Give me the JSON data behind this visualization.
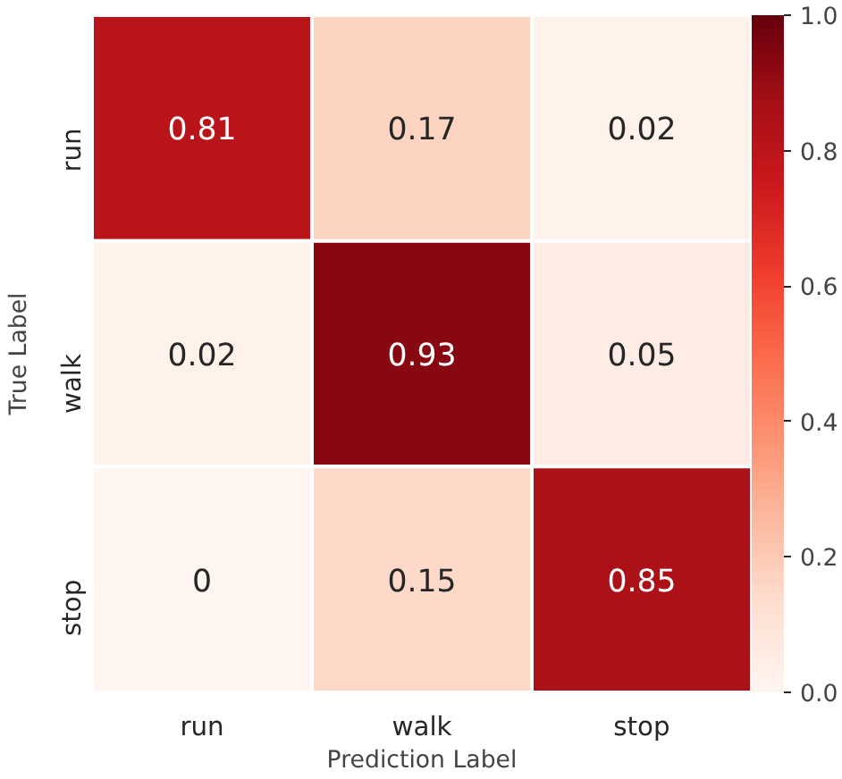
{
  "chart_data": {
    "type": "heatmap",
    "xlabel": "Prediction Label",
    "ylabel": "True Label",
    "categories": [
      "run",
      "walk",
      "stop"
    ],
    "y_categories": [
      "run",
      "walk",
      "stop"
    ],
    "cells": [
      [
        0.81,
        0.17,
        0.02
      ],
      [
        0.02,
        0.93,
        0.05
      ],
      [
        0,
        0.15,
        0.85
      ]
    ],
    "data_labels": true,
    "clim": [
      0.0,
      1.0
    ],
    "cticks": [
      {
        "value": 0.0,
        "label": "0.0"
      },
      {
        "value": 0.2,
        "label": "0.2"
      },
      {
        "value": 0.4,
        "label": "0.4"
      },
      {
        "value": 0.6,
        "label": "0.6"
      },
      {
        "value": 0.8,
        "label": "0.8"
      },
      {
        "value": 1.0,
        "label": "1.0"
      }
    ]
  }
}
